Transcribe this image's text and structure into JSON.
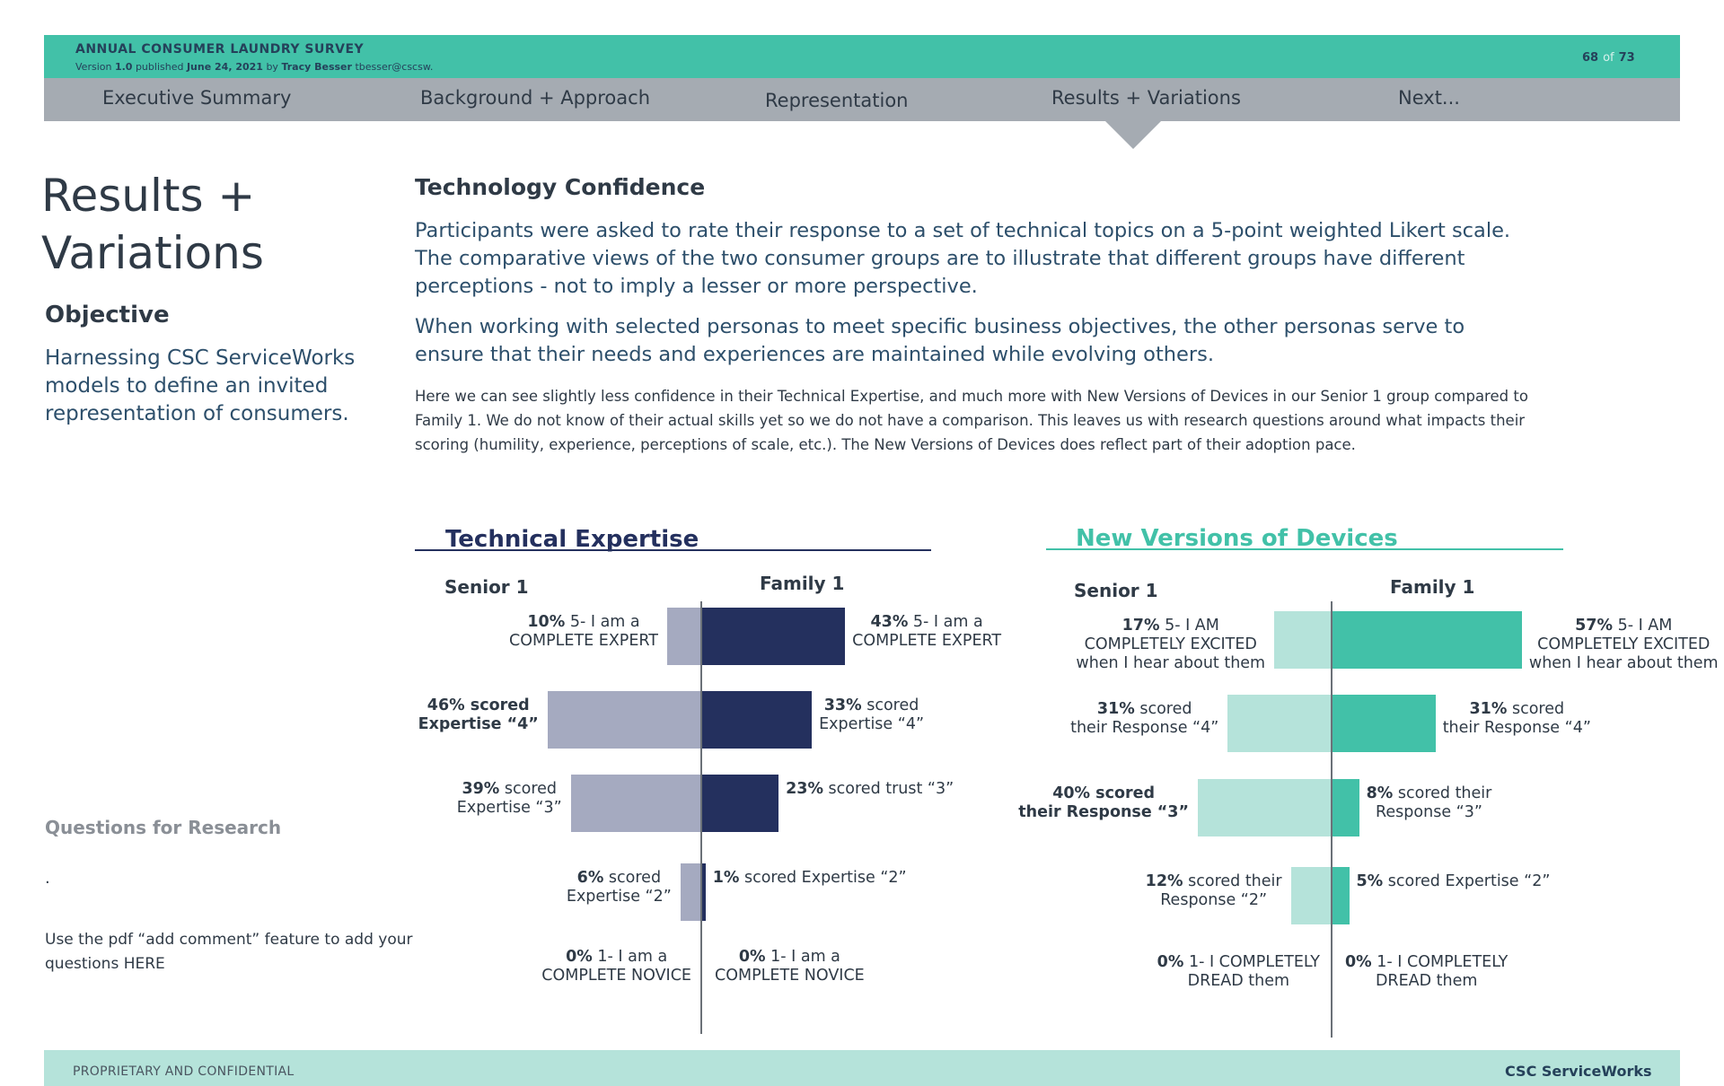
{
  "header": {
    "survey_title": "ANNUAL CONSUMER LAUNDRY SURVEY",
    "version_prefix": "Version",
    "version_number": "1.0",
    "published_text": "published",
    "published_date": "June 24, 2021",
    "by_text": "by",
    "author": "Tracy Besser",
    "author_email": "tbesser@cscsw.",
    "page_current": "68",
    "page_of": "of",
    "page_total": "73"
  },
  "nav": {
    "items": [
      {
        "label": "Executive Summary"
      },
      {
        "label": "Background + Approach"
      },
      {
        "label": "Representation"
      },
      {
        "label": "Results + Variations"
      },
      {
        "label": "Next..."
      }
    ],
    "active_index": 3
  },
  "left": {
    "title_line1": "Results +",
    "title_line2": "Variations",
    "objective_heading": "Objective",
    "objective_text": "Harnessing CSC ServiceWorks models to define an invited representation of consumers.",
    "questions_heading": "Questions for Research",
    "bullet": ".",
    "comment_text": "Use the pdf “add comment” feature to add your questions HERE"
  },
  "main": {
    "heading": "Technology Confidence",
    "paragraph1": "Participants were asked to rate their response to a set of technical topics on a 5-point weighted Likert scale. The comparative views of the two consumer groups are to illustrate that different groups have different perceptions - not to imply a lesser or more perspective.",
    "paragraph2": "When working with selected personas to meet specific business objectives, the other personas serve to ensure that their needs and experiences are maintained while evolving others.",
    "paragraph3": "Here we can see slightly less confidence in their Technical Expertise, and much more with New Versions of Devices in our Senior 1 group compared to Family 1. We do not know of their actual skills yet so we do not have a comparison. This leaves us with research questions around what impacts their scoring (humility, experience, perceptions of scale, etc.). The New Versions of Devices does reflect part of their adoption pace."
  },
  "chart_data": [
    {
      "type": "bar",
      "title": "Technical Expertise",
      "groups": [
        "Senior 1",
        "Family 1"
      ],
      "colors": {
        "left": "#a5aac0",
        "right": "#24305e",
        "title": "#24305e"
      },
      "series": [
        {
          "name": "Senior 1",
          "values": [
            10,
            46,
            39,
            6,
            0
          ]
        },
        {
          "name": "Family 1",
          "values": [
            43,
            33,
            23,
            1,
            0
          ]
        }
      ],
      "left_labels": [
        {
          "bold": "10%",
          "text": " 5- I am a\nCOMPLETE EXPERT"
        },
        {
          "bold": "46% scored\nExpertise “4”",
          "text": ""
        },
        {
          "bold": "39%",
          "text": " scored\nExpertise “3”"
        },
        {
          "bold": "6%",
          "text": " scored\nExpertise “2”"
        },
        {
          "bold": "0%",
          "text": " 1- I am a\nCOMPLETE NOVICE"
        }
      ],
      "right_labels": [
        {
          "bold": "43%",
          "text": "  5- I am a\nCOMPLETE EXPERT"
        },
        {
          "bold": "33%",
          "text": " scored\nExpertise “4”"
        },
        {
          "bold": "23%",
          "text": " scored trust “3”"
        },
        {
          "bold": "1%",
          "text": " scored Expertise “2”"
        },
        {
          "bold": "0%",
          "text": " 1- I am a\nCOMPLETE NOVICE"
        }
      ]
    },
    {
      "type": "bar",
      "title": "New Versions of Devices",
      "groups": [
        "Senior 1",
        "Family 1"
      ],
      "colors": {
        "left": "#b5e3da",
        "right": "#42c1a8",
        "title": "#42c1a8"
      },
      "series": [
        {
          "name": "Senior 1",
          "values": [
            17,
            31,
            40,
            12,
            0
          ]
        },
        {
          "name": "Family 1",
          "values": [
            57,
            31,
            8,
            5,
            0
          ]
        }
      ],
      "left_labels": [
        {
          "bold": "17%",
          "text": "  5- I AM\nCOMPLETELY EXCITED\nwhen I hear about them"
        },
        {
          "bold": "31%",
          "text": " scored\ntheir Response “4”"
        },
        {
          "bold": "40% scored\ntheir Response “3”",
          "text": ""
        },
        {
          "bold": "12%",
          "text": " scored their\nResponse “2”"
        },
        {
          "bold": "0%",
          "text": " 1- I COMPLETELY\nDREAD them"
        }
      ],
      "right_labels": [
        {
          "bold": "57%",
          "text": "  5- I AM\nCOMPLETELY EXCITED\nwhen I hear about them"
        },
        {
          "bold": "31%",
          "text": " scored\ntheir Response “4”"
        },
        {
          "bold": "8%",
          "text": " scored their\nResponse “3”"
        },
        {
          "bold": "5%",
          "text": " scored Expertise “2”"
        },
        {
          "bold": "0%",
          "text": " 1- I COMPLETELY\nDREAD them"
        }
      ]
    }
  ],
  "footer": {
    "left_text": "PROPRIETARY AND CONFIDENTIAL",
    "right_text": "CSC ServiceWorks"
  }
}
